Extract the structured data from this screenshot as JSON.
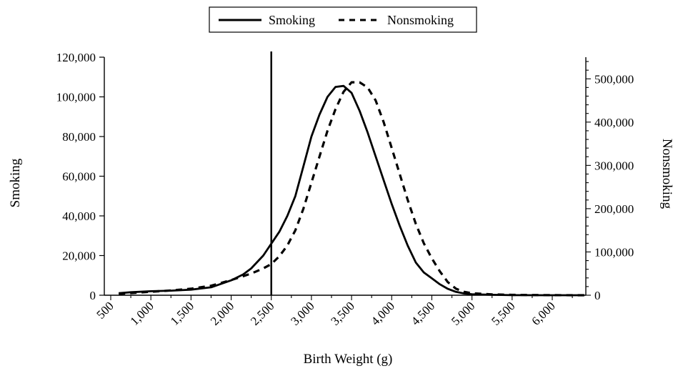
{
  "chart_data": {
    "type": "line",
    "title": "",
    "xlabel": "Birth Weight (g)",
    "ylabel": "Smoking",
    "y2label": "Nonsmoking",
    "xlim": [
      500,
      6400
    ],
    "ylim": [
      0,
      120000
    ],
    "y2lim": [
      0,
      550000
    ],
    "x_ticks": [
      500,
      1000,
      1500,
      2000,
      2500,
      3000,
      3500,
      4000,
      4500,
      5000,
      5500,
      6000
    ],
    "x_tick_labels": [
      "500",
      "1,000",
      "1,500",
      "2,000",
      "2,500",
      "3,000",
      "3,500",
      "4,000",
      "4,500",
      "5,000",
      "5,500",
      "6,000"
    ],
    "y_ticks": [
      0,
      20000,
      40000,
      60000,
      80000,
      100000,
      120000
    ],
    "y_tick_labels": [
      "0",
      "20,000",
      "40,000",
      "60,000",
      "80,000",
      "100,000",
      "120,000"
    ],
    "y2_ticks": [
      0,
      100000,
      200000,
      300000,
      400000,
      500000
    ],
    "y2_tick_labels": [
      "0",
      "100,000",
      "200,000",
      "300,000",
      "400,000",
      "500,000"
    ],
    "reference_line_x": 2500,
    "legend_position": "top-center",
    "series": [
      {
        "name": "Smoking",
        "axis": "left",
        "style": "solid",
        "color": "#000000",
        "x": [
          600,
          750,
          1000,
          1250,
          1500,
          1750,
          2000,
          2150,
          2250,
          2400,
          2500,
          2600,
          2700,
          2800,
          2900,
          3000,
          3100,
          3200,
          3300,
          3400,
          3500,
          3600,
          3700,
          3800,
          3900,
          4000,
          4100,
          4200,
          4300,
          4400,
          4500,
          4600,
          4700,
          4800,
          4900,
          5000,
          5250,
          5500,
          6000,
          6400
        ],
        "y": [
          1000,
          1500,
          2000,
          2300,
          2800,
          4000,
          7500,
          10500,
          13500,
          20000,
          26000,
          32000,
          40000,
          50000,
          65000,
          80000,
          91000,
          100000,
          105000,
          105500,
          102000,
          93000,
          82000,
          70000,
          58000,
          46000,
          35000,
          25000,
          16500,
          11500,
          8500,
          5500,
          3200,
          1700,
          900,
          500,
          200,
          50,
          0,
          0
        ]
      },
      {
        "name": "Nonsmoking",
        "axis": "right",
        "style": "dashed",
        "color": "#000000",
        "x": [
          600,
          750,
          1000,
          1250,
          1500,
          1750,
          2000,
          2250,
          2400,
          2500,
          2600,
          2700,
          2800,
          2900,
          3000,
          3100,
          3200,
          3300,
          3400,
          3500,
          3600,
          3700,
          3800,
          3900,
          4000,
          4100,
          4200,
          4300,
          4400,
          4500,
          4600,
          4700,
          4800,
          4900,
          5000,
          5250,
          5500,
          6000,
          6400
        ],
        "y": [
          3000,
          5000,
          8000,
          11000,
          15000,
          22000,
          35000,
          50000,
          62000,
          72000,
          90000,
          115000,
          150000,
          200000,
          260000,
          320000,
          380000,
          430000,
          470000,
          492000,
          492000,
          480000,
          450000,
          400000,
          340000,
          280000,
          220000,
          165000,
          120000,
          85000,
          55000,
          30000,
          15000,
          8000,
          4500,
          2000,
          800,
          200,
          0
        ]
      }
    ]
  }
}
